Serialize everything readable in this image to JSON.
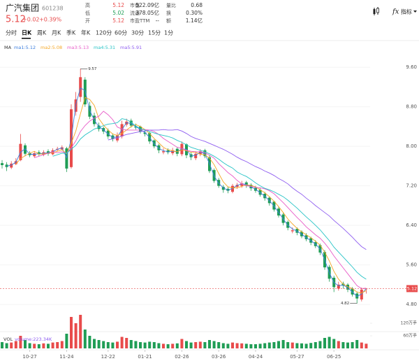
{
  "header": {
    "name": "广汽集团",
    "code": "601238",
    "price": "5.12",
    "change": "+0.02",
    "change_pct": "+0.39%",
    "price_color": "#e84b4b",
    "stats": [
      [
        {
          "label": "高",
          "value": "5.12",
          "color": "#e84b4b"
        },
        {
          "label": "低",
          "value": "5.02",
          "color": "#1f9d55"
        },
        {
          "label": "开",
          "value": "5.12",
          "color": "#e84b4b"
        }
      ],
      [
        {
          "label": "市值",
          "value": "522.09亿"
        },
        {
          "label": "流通",
          "value": "378.05亿"
        },
        {
          "label": "市盈TTM",
          "value": "--"
        }
      ],
      [
        {
          "label": "量比",
          "value": "0.68"
        },
        {
          "label": "换",
          "value": "0.30%"
        },
        {
          "label": "额",
          "value": "1.14亿"
        }
      ]
    ],
    "indicator_button": "指标"
  },
  "tabs": [
    "分时",
    "日K",
    "周K",
    "月K",
    "季K",
    "年K",
    "120分",
    "60分",
    "30分",
    "15分",
    "1分"
  ],
  "chart_data": [
    {
      "type": "candlestick",
      "legend_title": "MA",
      "up_color": "#e84b4b",
      "down_color": "#1f9d55",
      "ylim": [
        4.66,
        9.9
      ],
      "yticks": [
        {
          "value": 9.6,
          "label": "9.60"
        },
        {
          "value": 8.8,
          "label": "8.80"
        },
        {
          "value": 8.0,
          "label": "8.00"
        },
        {
          "value": 7.2,
          "label": "7.20"
        },
        {
          "value": 6.4,
          "label": "6.40"
        },
        {
          "value": 5.6,
          "label": "5.60"
        },
        {
          "value": 4.8,
          "label": "4.80"
        }
      ],
      "grid": true,
      "current_price": 5.12,
      "high_label": "9.57",
      "low_label": "4.82",
      "open": [
        7.66,
        7.63,
        7.57,
        7.64,
        7.72,
        8.02,
        7.86,
        7.8,
        7.88,
        7.83,
        7.9,
        7.84,
        7.93,
        7.94,
        7.96,
        7.58,
        8.7,
        9.0,
        9.35,
        8.82,
        8.62,
        8.42,
        8.37,
        8.32,
        8.22,
        8.12,
        8.2,
        8.44,
        8.52,
        8.4,
        8.4,
        8.28,
        8.27,
        8.12,
        8.02,
        7.88,
        7.92,
        7.86,
        7.95,
        7.84,
        8.04,
        7.84,
        7.76,
        7.84,
        7.92,
        7.78,
        7.52,
        7.32,
        7.18,
        7.14,
        7.08,
        7.18,
        7.2,
        7.27,
        7.22,
        7.16,
        7.12,
        7.04,
        6.96,
        6.88,
        6.74,
        6.62,
        6.47,
        6.28,
        6.33,
        6.27,
        6.2,
        6.14,
        6.06,
        6.0,
        5.86,
        5.56,
        5.34,
        5.12,
        5.22,
        5.2,
        5.12,
        5.02,
        4.9,
        5.12
      ],
      "high": [
        7.72,
        7.68,
        7.7,
        7.76,
        8.25,
        8.06,
        7.9,
        7.9,
        7.92,
        7.92,
        7.94,
        7.96,
        7.99,
        8.02,
        7.99,
        8.85,
        9.1,
        9.57,
        9.4,
        8.9,
        8.68,
        8.48,
        8.4,
        8.36,
        8.26,
        8.28,
        8.52,
        8.56,
        8.56,
        8.46,
        8.42,
        8.33,
        8.3,
        8.14,
        8.05,
        7.96,
        7.96,
        7.97,
        7.98,
        8.1,
        8.06,
        7.88,
        7.9,
        7.94,
        7.95,
        7.82,
        7.55,
        7.36,
        7.22,
        7.18,
        7.24,
        7.26,
        7.3,
        7.3,
        7.25,
        7.2,
        7.15,
        7.08,
        6.99,
        6.9,
        6.78,
        6.66,
        6.5,
        6.36,
        6.36,
        6.3,
        6.24,
        6.17,
        6.1,
        6.03,
        5.9,
        5.6,
        5.38,
        5.26,
        5.26,
        5.23,
        5.15,
        5.06,
        5.14,
        5.12
      ],
      "low": [
        7.55,
        7.5,
        7.54,
        7.62,
        7.7,
        7.8,
        7.78,
        7.77,
        7.8,
        7.8,
        7.81,
        7.82,
        7.9,
        7.92,
        7.48,
        7.55,
        8.62,
        8.9,
        8.8,
        8.55,
        8.4,
        8.3,
        8.25,
        8.15,
        8.1,
        8.08,
        8.16,
        8.4,
        8.38,
        8.34,
        8.26,
        8.2,
        8.05,
        7.96,
        7.86,
        7.84,
        7.84,
        7.82,
        7.8,
        7.8,
        7.76,
        7.72,
        7.72,
        7.8,
        7.76,
        7.46,
        7.26,
        7.16,
        7.06,
        7.05,
        7.05,
        7.14,
        7.16,
        7.16,
        7.1,
        7.06,
        6.98,
        6.9,
        6.8,
        6.68,
        6.56,
        6.4,
        6.3,
        6.24,
        6.2,
        6.14,
        6.08,
        6.0,
        5.94,
        5.8,
        5.5,
        5.26,
        5.05,
        5.08,
        5.12,
        5.05,
        4.96,
        4.82,
        4.86,
        5.02
      ],
      "close": [
        7.62,
        7.58,
        7.65,
        7.7,
        8.05,
        7.85,
        7.82,
        7.86,
        7.84,
        7.88,
        7.85,
        7.92,
        7.95,
        7.98,
        7.55,
        8.75,
        8.95,
        9.4,
        8.85,
        8.6,
        8.45,
        8.35,
        8.3,
        8.2,
        8.15,
        8.22,
        8.45,
        8.5,
        8.42,
        8.38,
        8.3,
        8.25,
        8.1,
        8.0,
        7.92,
        7.9,
        7.88,
        7.92,
        7.85,
        8.05,
        7.82,
        7.78,
        7.85,
        7.9,
        7.8,
        7.5,
        7.3,
        7.2,
        7.12,
        7.1,
        7.2,
        7.22,
        7.25,
        7.2,
        7.15,
        7.1,
        7.02,
        6.95,
        6.85,
        6.72,
        6.6,
        6.45,
        6.35,
        6.3,
        6.25,
        6.18,
        6.12,
        6.05,
        5.98,
        5.85,
        5.55,
        5.32,
        5.15,
        5.2,
        5.18,
        5.1,
        5.0,
        4.92,
        5.1,
        5.12
      ],
      "series": [
        {
          "name": "ma1:5.12",
          "color": "#3b7ddd",
          "values": [
            null,
            7.6,
            7.62,
            7.68,
            7.88,
            7.95,
            7.84,
            7.84,
            7.85,
            7.86,
            7.87,
            7.89,
            7.94,
            7.97,
            7.77,
            8.15,
            8.85,
            9.18,
            9.13,
            8.73,
            8.53,
            8.4,
            8.33,
            8.25,
            8.18,
            8.19,
            8.34,
            8.48,
            8.46,
            8.4,
            8.34,
            8.28,
            8.18,
            8.05,
            7.96,
            7.91,
            7.89,
            7.9,
            7.89,
            7.95,
            7.94,
            7.8,
            7.82,
            7.88,
            7.85,
            7.65,
            7.4,
            7.25,
            7.16,
            7.11,
            7.15,
            7.21,
            7.24,
            7.23,
            7.18,
            7.13,
            7.06,
            6.99,
            6.9,
            6.79,
            6.66,
            6.53,
            6.4,
            6.33,
            6.28,
            6.22,
            6.15,
            6.09,
            6.02,
            5.92,
            5.7,
            5.44,
            5.24,
            5.18,
            5.19,
            5.14,
            5.05,
            4.96,
            5.01,
            5.12
          ]
        },
        {
          "name": "ma2:5.08",
          "color": "#f5a623",
          "values": [
            null,
            null,
            null,
            7.64,
            7.75,
            7.81,
            7.86,
            7.9,
            7.84,
            7.85,
            7.86,
            7.87,
            7.9,
            7.93,
            7.85,
            8.06,
            8.31,
            8.66,
            8.99,
            8.95,
            8.83,
            8.56,
            8.43,
            8.33,
            8.25,
            8.22,
            8.26,
            8.33,
            8.4,
            8.44,
            8.4,
            8.34,
            8.26,
            8.16,
            8.07,
            7.98,
            7.93,
            7.91,
            7.89,
            7.93,
            7.91,
            7.88,
            7.88,
            7.84,
            7.83,
            7.76,
            7.63,
            7.45,
            7.28,
            7.18,
            7.16,
            7.16,
            7.19,
            7.22,
            7.21,
            7.18,
            7.12,
            7.06,
            6.98,
            6.89,
            6.78,
            6.66,
            6.53,
            6.43,
            6.34,
            6.27,
            6.21,
            6.15,
            6.08,
            6.0,
            5.86,
            5.68,
            5.47,
            5.31,
            5.21,
            5.16,
            5.12,
            5.05,
            5.03,
            5.08
          ]
        },
        {
          "name": "ma3:5.13",
          "color": "#e85bc8",
          "values": [
            null,
            null,
            null,
            null,
            null,
            null,
            null,
            7.77,
            7.8,
            7.83,
            7.86,
            7.89,
            7.87,
            7.89,
            7.86,
            7.97,
            8.11,
            8.3,
            8.42,
            8.51,
            8.57,
            8.61,
            8.71,
            8.64,
            8.54,
            8.39,
            8.35,
            8.33,
            8.33,
            8.33,
            8.33,
            8.34,
            8.33,
            8.3,
            8.24,
            8.16,
            8.1,
            8.04,
            7.98,
            7.96,
            7.92,
            7.9,
            7.89,
            7.89,
            7.87,
            7.82,
            7.76,
            7.65,
            7.56,
            7.47,
            7.4,
            7.31,
            7.24,
            7.2,
            7.19,
            7.17,
            7.16,
            7.14,
            7.1,
            7.04,
            6.95,
            6.86,
            6.76,
            6.66,
            6.56,
            6.47,
            6.37,
            6.29,
            6.21,
            6.14,
            6.04,
            5.92,
            5.78,
            5.66,
            5.54,
            5.42,
            5.3,
            5.18,
            5.12,
            5.13
          ]
        },
        {
          "name": "ma4:5.31",
          "color": "#26c3c6",
          "values": [
            null,
            null,
            null,
            null,
            null,
            null,
            null,
            null,
            null,
            null,
            null,
            7.8,
            7.83,
            7.86,
            7.86,
            7.94,
            8.02,
            8.15,
            8.23,
            8.29,
            8.35,
            8.38,
            8.42,
            8.45,
            8.46,
            8.48,
            8.56,
            8.54,
            8.49,
            8.41,
            8.36,
            8.33,
            8.3,
            8.27,
            8.24,
            8.22,
            8.2,
            8.17,
            8.12,
            8.08,
            8.03,
            7.98,
            7.95,
            7.92,
            7.89,
            7.85,
            7.8,
            7.74,
            7.67,
            7.61,
            7.56,
            7.48,
            7.43,
            7.39,
            7.33,
            7.26,
            7.2,
            7.15,
            7.12,
            7.08,
            7.03,
            6.98,
            6.91,
            6.83,
            6.75,
            6.66,
            6.57,
            6.49,
            6.4,
            6.31,
            6.2,
            6.09,
            5.96,
            5.86,
            5.76,
            5.66,
            5.56,
            5.45,
            5.37,
            5.31
          ]
        },
        {
          "name": "ma5:5.91",
          "color": "#8e5cf0",
          "values": [
            null,
            null,
            null,
            null,
            null,
            null,
            null,
            null,
            null,
            null,
            null,
            null,
            null,
            null,
            null,
            null,
            null,
            null,
            null,
            null,
            null,
            null,
            null,
            8.13,
            8.15,
            8.17,
            8.21,
            8.24,
            8.26,
            8.28,
            8.3,
            8.31,
            8.33,
            8.33,
            8.33,
            8.34,
            8.33,
            8.33,
            8.34,
            8.31,
            8.26,
            8.2,
            8.16,
            8.13,
            8.1,
            8.06,
            8.02,
            7.98,
            7.94,
            7.89,
            7.84,
            7.78,
            7.73,
            7.69,
            7.64,
            7.59,
            7.55,
            7.5,
            7.46,
            7.41,
            7.35,
            7.3,
            7.24,
            7.16,
            7.09,
            7.03,
            6.95,
            6.88,
            6.8,
            6.73,
            6.66,
            6.59,
            6.5,
            6.42,
            6.34,
            6.25,
            6.16,
            6.06,
            5.97,
            5.91
          ]
        }
      ]
    },
    {
      "type": "bar",
      "title": "VOL",
      "legend": "volume:223.34K",
      "legend_color": "#8e5cf0",
      "ylim": [
        0,
        160
      ],
      "yticks": [
        {
          "value": 120,
          "label": "120万手"
        },
        {
          "value": 60,
          "label": "60万手"
        }
      ],
      "categories": [
        null,
        null,
        null,
        null,
        null,
        null,
        "10-27",
        null,
        null,
        null,
        null,
        null,
        null,
        null,
        "11-24",
        null,
        null,
        null,
        null,
        null,
        null,
        null,
        null,
        "12-22",
        null,
        null,
        null,
        null,
        null,
        null,
        null,
        "01-21",
        null,
        null,
        null,
        null,
        null,
        null,
        null,
        "02-26",
        null,
        null,
        null,
        null,
        null,
        null,
        null,
        "03-26",
        null,
        null,
        null,
        null,
        null,
        null,
        null,
        "04-24",
        null,
        null,
        null,
        null,
        null,
        null,
        null,
        null,
        "05-27",
        null,
        null,
        null,
        null,
        null,
        null,
        null,
        "06-25",
        null,
        null,
        null,
        null,
        null,
        null,
        null
      ],
      "values": [
        30,
        25,
        28,
        35,
        60,
        40,
        25,
        22,
        20,
        24,
        22,
        28,
        30,
        35,
        70,
        150,
        120,
        160,
        90,
        60,
        45,
        40,
        35,
        30,
        28,
        32,
        55,
        50,
        40,
        35,
        30,
        28,
        32,
        30,
        25,
        22,
        20,
        22,
        24,
        45,
        35,
        28,
        30,
        32,
        30,
        40,
        35,
        30,
        25,
        22,
        28,
        25,
        24,
        22,
        20,
        20,
        22,
        25,
        28,
        30,
        35,
        40,
        30,
        28,
        25,
        24,
        22,
        26,
        30,
        35,
        50,
        55,
        45,
        35,
        30,
        28,
        30,
        40,
        28,
        22.334
      ]
    }
  ]
}
